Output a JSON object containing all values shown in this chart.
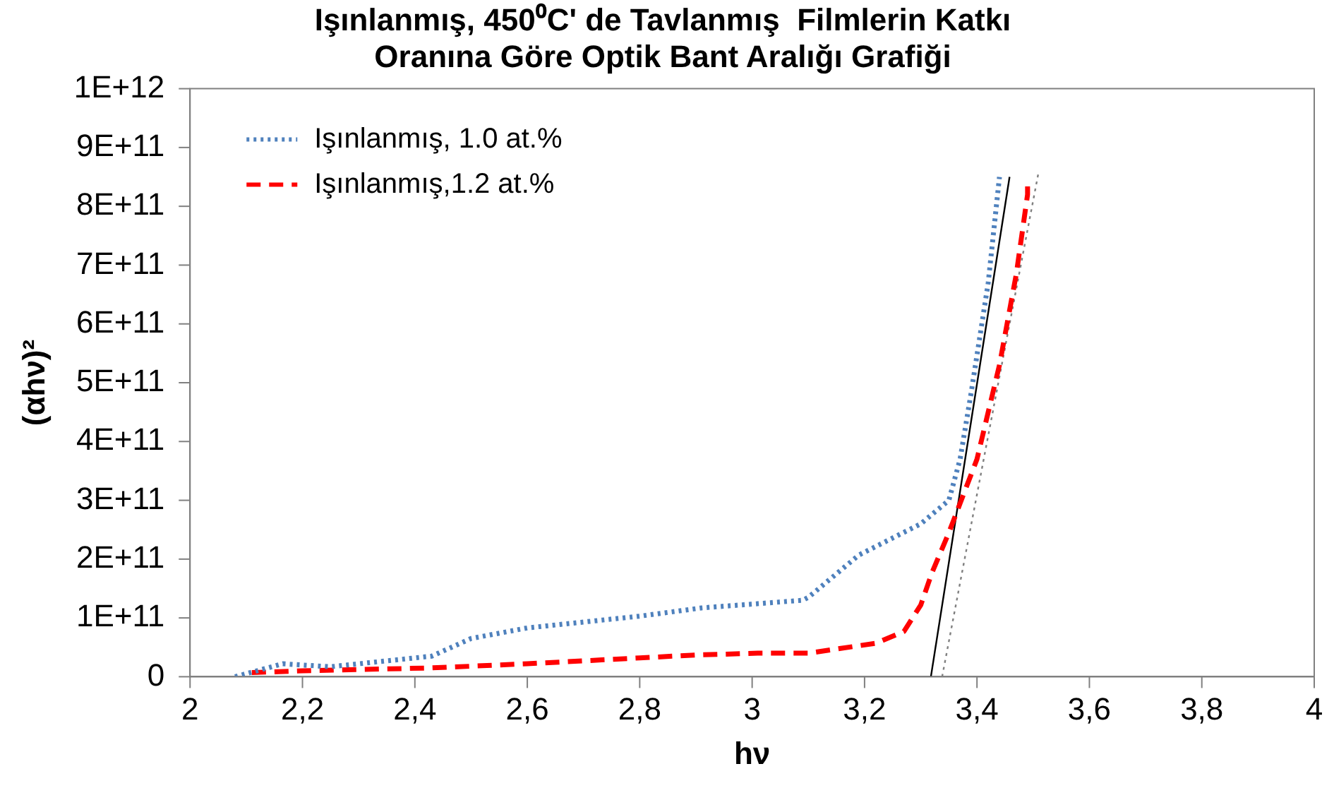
{
  "chart_data": {
    "type": "line",
    "title": "Işınlanmış, 450⁰C' de Tavlanmış  Filmlerin Katkı\nOranına Göre Optik Bant Aralığı Grafiği",
    "xlabel": "hν",
    "ylabel": "(αhν)²",
    "xlim": [
      2,
      4
    ],
    "xticks": [
      2,
      {
        "value": 2.2,
        "label": "2,2"
      },
      {
        "value": 2.4,
        "label": "2,4"
      },
      {
        "value": 2.6,
        "label": "2,6"
      },
      {
        "value": 2.8,
        "label": "2,8"
      },
      3,
      {
        "value": 3.2,
        "label": "3,2"
      },
      {
        "value": 3.4,
        "label": "3,4"
      },
      {
        "value": 3.6,
        "label": "3,6"
      },
      {
        "value": 3.8,
        "label": "3,8"
      },
      4
    ],
    "ylim": [
      0,
      1000000000000
    ],
    "yticks": [
      0,
      {
        "value": 100000000000,
        "label": "1E+11"
      },
      {
        "value": 200000000000,
        "label": "2E+11"
      },
      {
        "value": 300000000000,
        "label": "3E+11"
      },
      {
        "value": 400000000000,
        "label": "4E+11"
      },
      {
        "value": 500000000000,
        "label": "5E+11"
      },
      {
        "value": 600000000000,
        "label": "6E+11"
      },
      {
        "value": 700000000000,
        "label": "7E+11"
      },
      {
        "value": 800000000000,
        "label": "8E+11"
      },
      {
        "value": 900000000000,
        "label": "9E+11"
      },
      {
        "value": 1000000000000,
        "label": "1E+12"
      }
    ],
    "grid": false,
    "legend": "top left",
    "marker": "none",
    "series": [
      {
        "name": "Işınlanmış, 1.0 at.%",
        "color": "#4f81bd",
        "line_style": "dotted",
        "x": [
          2.08,
          2.165,
          2.25,
          2.43,
          2.5,
          2.6,
          2.8,
          2.91,
          3.09,
          3.1,
          3.19,
          3.3,
          3.35,
          3.37,
          3.39,
          3.42,
          3.44
        ],
        "values": [
          0,
          22000000000,
          17000000000,
          35000000000,
          65000000000,
          83000000000,
          103000000000,
          117000000000,
          130000000000,
          135000000000,
          207000000000,
          260000000000,
          300000000000,
          370000000000,
          485000000000,
          670000000000,
          850000000000
        ]
      },
      {
        "name": "Işınlanmış,1.2 at.%",
        "color": "#ff0000",
        "line_style": "dashed",
        "x": [
          2.11,
          2.2,
          2.43,
          2.6,
          2.8,
          2.9,
          3.01,
          3.1,
          3.22,
          3.27,
          3.3,
          3.32,
          3.35,
          3.4,
          3.44,
          3.47,
          3.49,
          3.49
        ],
        "values": [
          7000000000,
          10000000000,
          15000000000,
          22000000000,
          32000000000,
          37000000000,
          40000000000,
          40000000000,
          57000000000,
          77000000000,
          122000000000,
          177000000000,
          245000000000,
          370000000000,
          530000000000,
          685000000000,
          820000000000,
          840000000000
        ]
      },
      {
        "color": "#000000",
        "line_style": "solid",
        "x": [
          3.318,
          3.458
        ],
        "values": [
          0,
          850000000000
        ]
      },
      {
        "color": "#808080",
        "line_style": "dotted",
        "x": [
          3.338,
          3.51
        ],
        "values": [
          0,
          860000000000
        ]
      }
    ]
  }
}
